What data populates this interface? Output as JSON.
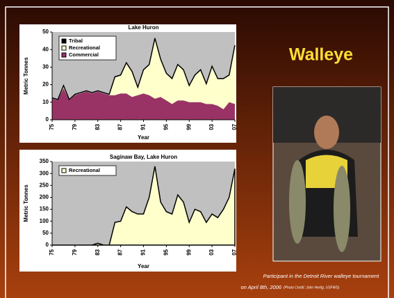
{
  "slide_title": "Walleye",
  "caption": "Participant in the Detroit River walleye tournament",
  "caption_date": "on April 8th, 2006",
  "photo_credit": "(Photo Credit: John Hertig, USFWS)",
  "chart_data": [
    {
      "type": "stacked_area",
      "title": "Lake Huron",
      "x_label": "Year",
      "y_label": "Metric Tonnes",
      "x": [
        1975,
        1976,
        1977,
        1978,
        1979,
        1980,
        1981,
        1982,
        1983,
        1984,
        1985,
        1986,
        1987,
        1988,
        1989,
        1990,
        1991,
        1992,
        1993,
        1994,
        1995,
        1996,
        1997,
        1998,
        1999,
        2000,
        2001,
        2002,
        2003,
        2004,
        2005,
        2006,
        2007
      ],
      "series": [
        {
          "name": "Commercial",
          "color": "#993366",
          "values": [
            12,
            11,
            18,
            11,
            14,
            15,
            16,
            15,
            16,
            15,
            14,
            14,
            15,
            15,
            13,
            14,
            15,
            14,
            12,
            13,
            11,
            9,
            11,
            11,
            10,
            10,
            10,
            9,
            9,
            8,
            6,
            10,
            9
          ]
        },
        {
          "name": "Recreational",
          "color": "#ffffcc",
          "values": [
            0,
            0,
            1,
            0,
            0,
            0,
            0,
            0,
            0,
            0,
            0,
            10,
            10,
            17,
            14,
            4,
            13,
            17,
            34,
            21,
            15,
            14,
            20,
            17,
            9,
            15,
            18,
            11,
            21,
            15,
            17,
            15,
            33
          ]
        },
        {
          "name": "Tribal",
          "color": "#000000",
          "values": [
            0.5,
            0.5,
            0.5,
            0.5,
            0.5,
            0.5,
            0.5,
            0.5,
            0.5,
            0.5,
            0.5,
            0.5,
            0.5,
            0.5,
            0.5,
            0.5,
            0.5,
            0.5,
            0.5,
            0.5,
            0.5,
            0.5,
            0.5,
            0.5,
            0.5,
            0.5,
            0.5,
            0.5,
            0.5,
            0.5,
            0.5,
            0.5,
            0.5
          ]
        }
      ],
      "xlim": [
        1975,
        2007
      ],
      "xticks": [
        {
          "value": 1975,
          "label": "75"
        },
        {
          "value": 1979,
          "label": "79"
        },
        {
          "value": 1983,
          "label": "83"
        },
        {
          "value": 1987,
          "label": "87"
        },
        {
          "value": 1991,
          "label": "91"
        },
        {
          "value": 1995,
          "label": "95"
        },
        {
          "value": 1999,
          "label": "99"
        },
        {
          "value": 2003,
          "label": "03"
        },
        {
          "value": 2007,
          "label": "07"
        }
      ],
      "ylim": [
        0,
        50
      ],
      "yticks": [
        0,
        10,
        20,
        30,
        40,
        50
      ],
      "legend": "top-left"
    },
    {
      "type": "area",
      "title": "Saginaw Bay, Lake Huron",
      "x_label": "Year",
      "y_label": "Metric Tonnes",
      "x": [
        1975,
        1976,
        1977,
        1978,
        1979,
        1980,
        1981,
        1982,
        1983,
        1984,
        1985,
        1986,
        1987,
        1988,
        1989,
        1990,
        1991,
        1992,
        1993,
        1994,
        1995,
        1996,
        1997,
        1998,
        1999,
        2000,
        2001,
        2002,
        2003,
        2004,
        2005,
        2006,
        2007
      ],
      "series": [
        {
          "name": "Recreational",
          "color": "#ffffcc",
          "values": [
            0,
            0,
            0,
            0,
            0,
            0,
            0,
            0,
            8,
            0,
            0,
            95,
            100,
            160,
            140,
            130,
            130,
            200,
            330,
            180,
            140,
            130,
            210,
            180,
            95,
            150,
            140,
            95,
            130,
            115,
            150,
            200,
            320
          ]
        }
      ],
      "xlim": [
        1975,
        2007
      ],
      "xticks": [
        {
          "value": 1975,
          "label": "75"
        },
        {
          "value": 1979,
          "label": "79"
        },
        {
          "value": 1983,
          "label": "83"
        },
        {
          "value": 1987,
          "label": "87"
        },
        {
          "value": 1991,
          "label": "91"
        },
        {
          "value": 1995,
          "label": "95"
        },
        {
          "value": 1999,
          "label": "99"
        },
        {
          "value": 2003,
          "label": "03"
        },
        {
          "value": 2007,
          "label": "07"
        }
      ],
      "ylim": [
        0,
        350
      ],
      "yticks": [
        0,
        50,
        100,
        150,
        200,
        250,
        300,
        350
      ],
      "legend": "top-left"
    }
  ]
}
